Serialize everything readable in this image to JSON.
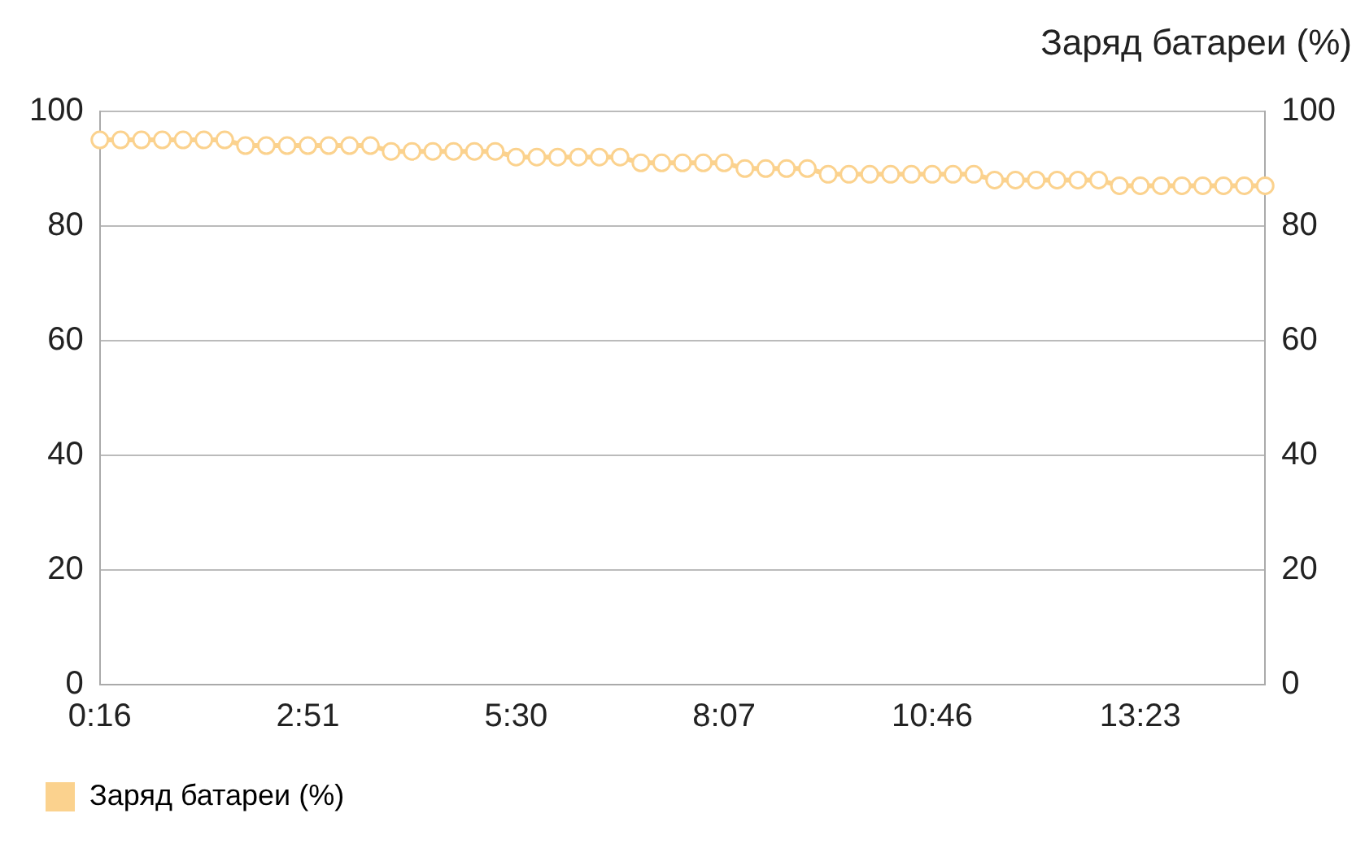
{
  "chart_data": {
    "type": "line",
    "title": "Заряд батареи (%)",
    "categories": [
      "0:16",
      null,
      null,
      null,
      null,
      null,
      null,
      null,
      null,
      null,
      "2:51",
      null,
      null,
      null,
      null,
      null,
      null,
      null,
      null,
      null,
      "5:30",
      null,
      null,
      null,
      null,
      null,
      null,
      null,
      null,
      null,
      "8:07",
      null,
      null,
      null,
      null,
      null,
      null,
      null,
      null,
      null,
      "10:46",
      null,
      null,
      null,
      null,
      null,
      null,
      null,
      null,
      null,
      "13:23",
      null,
      null,
      null,
      null,
      null,
      null
    ],
    "series": [
      {
        "name": "Заряд батареи (%)",
        "color": "#fbd28e",
        "values": [
          95,
          95,
          95,
          95,
          95,
          95,
          95,
          94,
          94,
          94,
          94,
          94,
          94,
          94,
          93,
          93,
          93,
          93,
          93,
          93,
          92,
          92,
          92,
          92,
          92,
          92,
          91,
          91,
          91,
          91,
          91,
          90,
          90,
          90,
          90,
          89,
          89,
          89,
          89,
          89,
          89,
          89,
          89,
          88,
          88,
          88,
          88,
          88,
          88,
          87,
          87,
          87,
          87,
          87,
          87,
          87,
          87
        ]
      }
    ],
    "ylim": [
      0,
      100
    ],
    "yticks": [
      0,
      20,
      40,
      60,
      80,
      100
    ],
    "y2lim": [
      0,
      100
    ],
    "y2ticks": [
      0,
      20,
      40,
      60,
      80,
      100
    ],
    "grid": "y",
    "legend": "bottom left",
    "marker": "circle",
    "line_style": "solid"
  }
}
